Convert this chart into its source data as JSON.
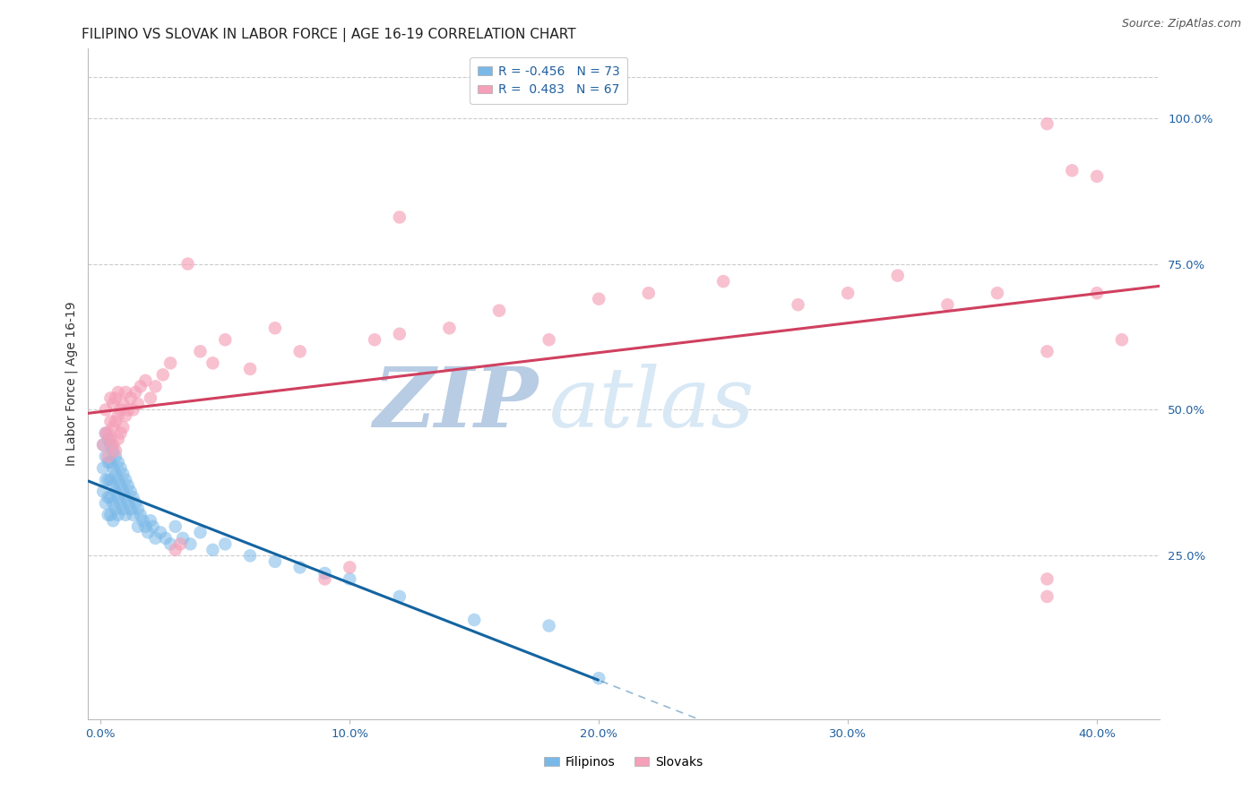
{
  "title": "FILIPINO VS SLOVAK IN LABOR FORCE | AGE 16-19 CORRELATION CHART",
  "source": "Source: ZipAtlas.com",
  "ylabel": "In Labor Force | Age 16-19",
  "xlabel_ticks": [
    "0.0%",
    "10.0%",
    "20.0%",
    "30.0%",
    "40.0%"
  ],
  "xlabel_vals": [
    0.0,
    0.1,
    0.2,
    0.3,
    0.4
  ],
  "ylabel_right_ticks": [
    "25.0%",
    "50.0%",
    "75.0%",
    "100.0%"
  ],
  "ylabel_right_vals": [
    0.25,
    0.5,
    0.75,
    1.0
  ],
  "ylim": [
    -0.03,
    1.12
  ],
  "xlim": [
    -0.005,
    0.425
  ],
  "filipino_R": -0.456,
  "filipino_N": 73,
  "slovak_R": 0.483,
  "slovak_N": 67,
  "filipino_color": "#7ab8e8",
  "filipino_color_dark": "#1464a0",
  "slovak_color": "#f5a0b8",
  "slovak_color_dark": "#d04060",
  "background_color": "#ffffff",
  "watermark_color": "#c8d8ef",
  "title_fontsize": 11,
  "source_fontsize": 9,
  "axis_label_fontsize": 10,
  "tick_fontsize": 9.5,
  "legend_fontsize": 10,
  "filipino_x": [
    0.001,
    0.001,
    0.001,
    0.002,
    0.002,
    0.002,
    0.002,
    0.003,
    0.003,
    0.003,
    0.003,
    0.003,
    0.004,
    0.004,
    0.004,
    0.004,
    0.004,
    0.005,
    0.005,
    0.005,
    0.005,
    0.005,
    0.006,
    0.006,
    0.006,
    0.006,
    0.007,
    0.007,
    0.007,
    0.007,
    0.008,
    0.008,
    0.008,
    0.009,
    0.009,
    0.009,
    0.01,
    0.01,
    0.01,
    0.011,
    0.011,
    0.012,
    0.012,
    0.013,
    0.013,
    0.014,
    0.015,
    0.015,
    0.016,
    0.017,
    0.018,
    0.019,
    0.02,
    0.021,
    0.022,
    0.024,
    0.026,
    0.028,
    0.03,
    0.033,
    0.036,
    0.04,
    0.045,
    0.05,
    0.06,
    0.07,
    0.08,
    0.09,
    0.1,
    0.12,
    0.15,
    0.18,
    0.2
  ],
  "filipino_y": [
    0.44,
    0.4,
    0.36,
    0.46,
    0.42,
    0.38,
    0.34,
    0.45,
    0.41,
    0.38,
    0.35,
    0.32,
    0.44,
    0.41,
    0.38,
    0.35,
    0.32,
    0.43,
    0.4,
    0.37,
    0.34,
    0.31,
    0.42,
    0.39,
    0.36,
    0.33,
    0.41,
    0.38,
    0.35,
    0.32,
    0.4,
    0.37,
    0.34,
    0.39,
    0.36,
    0.33,
    0.38,
    0.35,
    0.32,
    0.37,
    0.34,
    0.36,
    0.33,
    0.35,
    0.32,
    0.34,
    0.33,
    0.3,
    0.32,
    0.31,
    0.3,
    0.29,
    0.31,
    0.3,
    0.28,
    0.29,
    0.28,
    0.27,
    0.3,
    0.28,
    0.27,
    0.29,
    0.26,
    0.27,
    0.25,
    0.24,
    0.23,
    0.22,
    0.21,
    0.18,
    0.14,
    0.13,
    0.04
  ],
  "slovak_x": [
    0.001,
    0.002,
    0.002,
    0.003,
    0.003,
    0.004,
    0.004,
    0.004,
    0.005,
    0.005,
    0.005,
    0.006,
    0.006,
    0.006,
    0.007,
    0.007,
    0.007,
    0.008,
    0.008,
    0.009,
    0.009,
    0.01,
    0.01,
    0.011,
    0.012,
    0.013,
    0.014,
    0.015,
    0.016,
    0.018,
    0.02,
    0.022,
    0.025,
    0.028,
    0.03,
    0.032,
    0.035,
    0.04,
    0.045,
    0.05,
    0.06,
    0.07,
    0.08,
    0.09,
    0.1,
    0.11,
    0.12,
    0.14,
    0.16,
    0.18,
    0.2,
    0.22,
    0.25,
    0.28,
    0.3,
    0.32,
    0.34,
    0.36,
    0.38,
    0.38,
    0.38,
    0.39,
    0.4,
    0.4,
    0.41,
    0.38,
    0.12
  ],
  "slovak_y": [
    0.44,
    0.46,
    0.5,
    0.46,
    0.42,
    0.48,
    0.45,
    0.52,
    0.44,
    0.47,
    0.51,
    0.43,
    0.48,
    0.52,
    0.45,
    0.49,
    0.53,
    0.46,
    0.5,
    0.47,
    0.51,
    0.49,
    0.53,
    0.5,
    0.52,
    0.5,
    0.53,
    0.51,
    0.54,
    0.55,
    0.52,
    0.54,
    0.56,
    0.58,
    0.26,
    0.27,
    0.75,
    0.6,
    0.58,
    0.62,
    0.57,
    0.64,
    0.6,
    0.21,
    0.23,
    0.62,
    0.63,
    0.64,
    0.67,
    0.62,
    0.69,
    0.7,
    0.72,
    0.68,
    0.7,
    0.73,
    0.68,
    0.7,
    0.21,
    0.18,
    0.99,
    0.91,
    0.9,
    0.7,
    0.62,
    0.6,
    0.83
  ]
}
